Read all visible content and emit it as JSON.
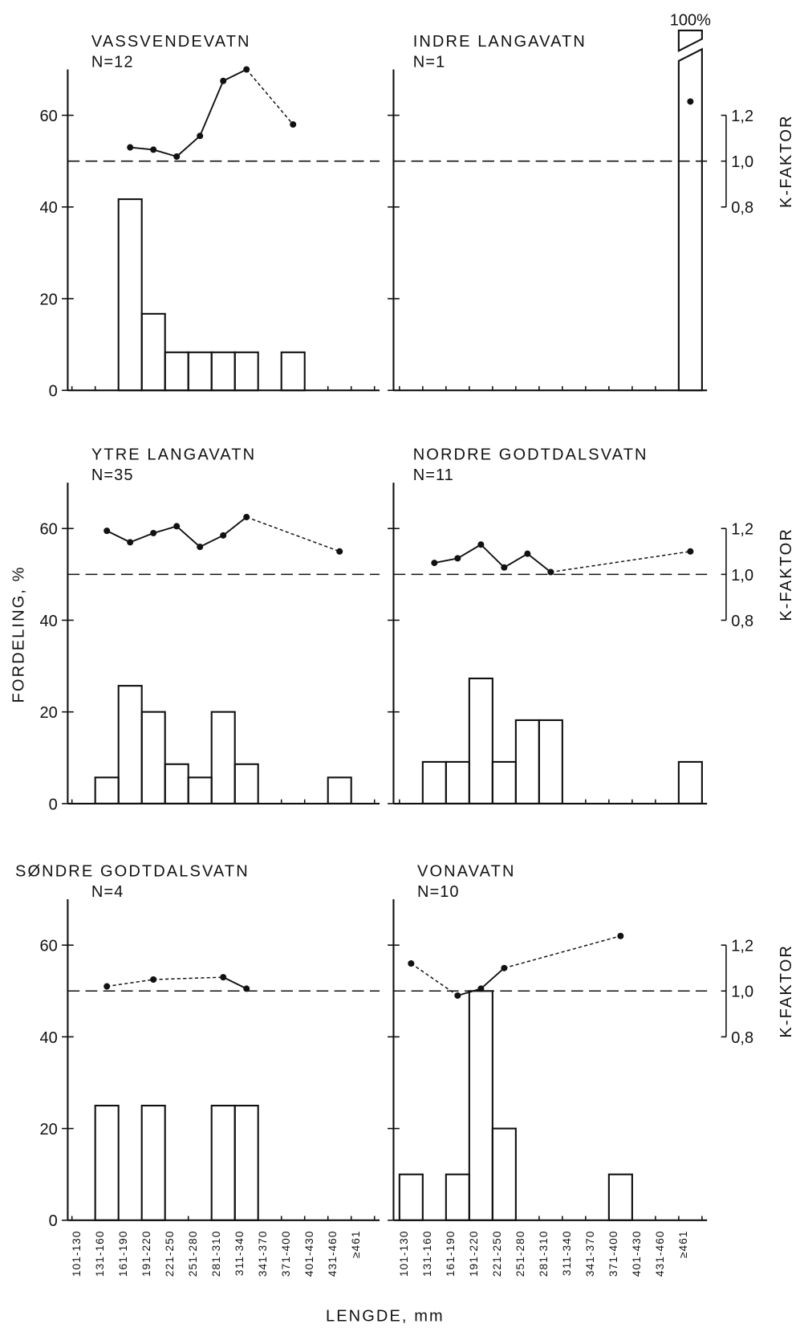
{
  "chart_data": [
    {
      "type": "histogram-k",
      "title": "VASSVENDEVATN",
      "n_label": "N=12",
      "values": [
        0,
        0,
        41.7,
        16.7,
        8.3,
        8.3,
        8.3,
        8.3,
        0,
        8.3,
        0,
        0,
        0
      ],
      "k_factor": [
        null,
        null,
        1.06,
        1.05,
        1.02,
        1.11,
        1.35,
        1.4,
        null,
        1.16,
        null,
        null,
        null
      ],
      "color": "#111",
      "ylim": [
        0,
        70
      ],
      "yticks": [
        0,
        20,
        40,
        60
      ],
      "y2lim": [
        0,
        1.4
      ],
      "reference": 1
    },
    {
      "type": "histogram-k",
      "title": "INDRE LANGAVATN",
      "n_label": "N=1",
      "values": [
        0,
        0,
        0,
        0,
        0,
        0,
        0,
        0,
        0,
        0,
        0,
        0,
        100
      ],
      "value_labels": [
        null,
        null,
        null,
        null,
        null,
        null,
        null,
        null,
        null,
        null,
        null,
        null,
        "100%"
      ],
      "k_factor": [
        null,
        null,
        null,
        null,
        null,
        null,
        null,
        null,
        null,
        null,
        null,
        null,
        1.26
      ],
      "color": "#111",
      "ylim": [
        0,
        70
      ],
      "yticks": [
        0,
        20,
        40,
        60
      ],
      "y2lim": [
        0,
        1.4
      ],
      "reference": 1,
      "y2ticks": [
        {
          "value": 0.8,
          "label": "0,8"
        },
        {
          "value": 1,
          "label": "1,0"
        },
        {
          "value": 1.2,
          "label": "1,2"
        }
      ],
      "y2label": "K-FAKTOR"
    },
    {
      "type": "histogram-k",
      "title": "YTRE LANGAVATN",
      "n_label": "N=35",
      "values": [
        0,
        5.7,
        25.7,
        20,
        8.6,
        5.7,
        20,
        8.6,
        0,
        0,
        0,
        5.7,
        0
      ],
      "k_factor": [
        null,
        1.19,
        1.14,
        1.18,
        1.21,
        1.12,
        1.17,
        1.25,
        null,
        null,
        null,
        1.1,
        null
      ],
      "color": "#111",
      "ylim": [
        0,
        70
      ],
      "yticks": [
        0,
        20,
        40,
        60
      ],
      "y2lim": [
        0,
        1.4
      ],
      "reference": 1,
      "ylabel": "FORDELING, %"
    },
    {
      "type": "histogram-k",
      "title": "NORDRE GODTDALSVATN",
      "n_label": "N=11",
      "values": [
        0,
        9.1,
        9.1,
        27.3,
        9.1,
        18.2,
        18.2,
        0,
        0,
        0,
        0,
        0,
        9.1
      ],
      "k_factor": [
        null,
        1.05,
        1.07,
        1.13,
        1.03,
        1.09,
        1.01,
        null,
        null,
        null,
        null,
        null,
        1.1
      ],
      "color": "#111",
      "ylim": [
        0,
        70
      ],
      "yticks": [
        0,
        20,
        40,
        60
      ],
      "y2lim": [
        0,
        1.4
      ],
      "reference": 1,
      "y2ticks": [
        {
          "value": 0.8,
          "label": "0,8"
        },
        {
          "value": 1,
          "label": "1,0"
        },
        {
          "value": 1.2,
          "label": "1,2"
        }
      ],
      "y2label": "K-FAKTOR"
    },
    {
      "type": "histogram-k",
      "title": "SØNDRE GODTDALSVATN",
      "n_label": "N=4",
      "categories": [
        "101-130",
        "131-160",
        "161-190",
        "191-220",
        "221-250",
        "251-280",
        "281-310",
        "311-340",
        "341-370",
        "371-400",
        "401-430",
        "431-460",
        "≥461"
      ],
      "values": [
        0,
        25,
        0,
        25,
        0,
        0,
        25,
        25,
        0,
        0,
        0,
        0,
        0
      ],
      "k_factor": [
        null,
        1.02,
        null,
        1.05,
        null,
        null,
        1.06,
        1.01,
        null,
        null,
        null,
        null,
        null
      ],
      "color": "#111",
      "ylim": [
        0,
        70
      ],
      "yticks": [
        0,
        20,
        40,
        60
      ],
      "y2lim": [
        0,
        1.4
      ],
      "reference": 1,
      "xlabel": "LENGDE, mm"
    },
    {
      "type": "histogram-k",
      "title": "VONAVATN",
      "n_label": "N=10",
      "categories": [
        "101-130",
        "131-160",
        "161-190",
        "191-220",
        "221-250",
        "251-280",
        "281-310",
        "311-340",
        "341-370",
        "371-400",
        "401-430",
        "431-460",
        "≥461"
      ],
      "values": [
        10,
        0,
        10,
        50,
        20,
        0,
        0,
        0,
        0,
        10,
        0,
        0,
        0
      ],
      "k_factor": [
        1.12,
        null,
        0.98,
        1.01,
        1.1,
        null,
        null,
        null,
        null,
        1.24,
        null,
        null,
        null
      ],
      "color": "#111",
      "ylim": [
        0,
        70
      ],
      "yticks": [
        0,
        20,
        40,
        60
      ],
      "y2lim": [
        0,
        1.4
      ],
      "reference": 1,
      "y2ticks": [
        {
          "value": 0.8,
          "label": "0,8"
        },
        {
          "value": 1,
          "label": "1,0"
        },
        {
          "value": 1.2,
          "label": "1,2"
        }
      ],
      "y2label": "K-FAKTOR"
    }
  ]
}
